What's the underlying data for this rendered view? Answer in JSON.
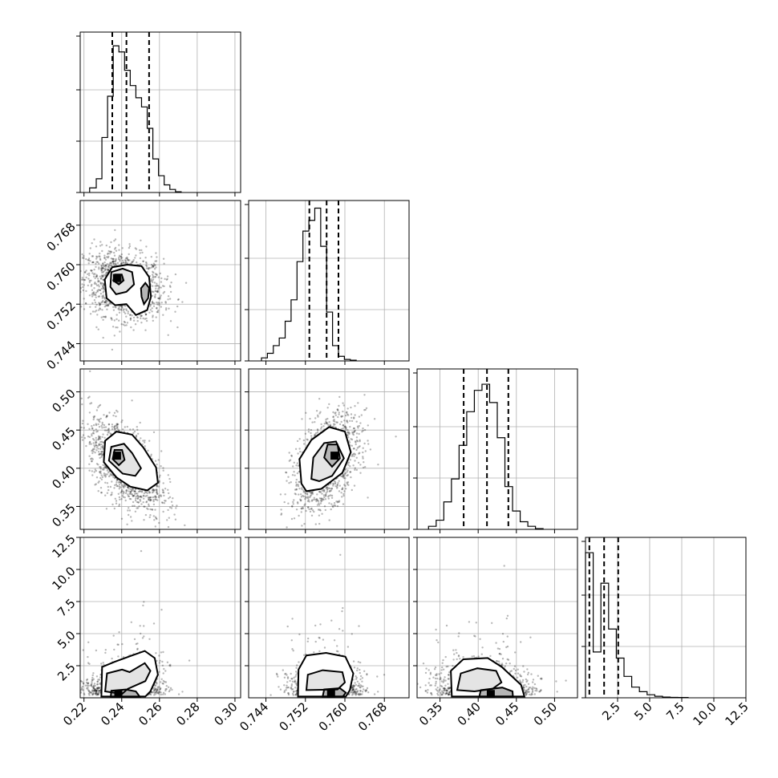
{
  "chart_data": {
    "type": "corner",
    "grid": true,
    "params": [
      {
        "range": [
          0.218,
          0.303
        ],
        "ticks": [
          0.22,
          0.24,
          0.26,
          0.28,
          0.3
        ],
        "tick_labels": [
          "0.22",
          "0.24",
          "0.26",
          "0.28",
          "0.30"
        ],
        "quantiles": [
          0.235,
          0.2425,
          0.2545
        ],
        "hist": {
          "edges": [
            0.223,
            0.2265,
            0.2295,
            0.2325,
            0.2355,
            0.2385,
            0.2415,
            0.2445,
            0.2475,
            0.2505,
            0.2535,
            0.2565,
            0.2595,
            0.2625,
            0.2655,
            0.2685,
            0.2715
          ],
          "counts": [
            0.03,
            0.09,
            0.36,
            0.63,
            0.96,
            0.92,
            0.8,
            0.7,
            0.62,
            0.56,
            0.42,
            0.22,
            0.11,
            0.05,
            0.02,
            0.005
          ]
        }
      },
      {
        "range": [
          0.7405,
          0.773
        ],
        "ticks": [
          0.744,
          0.752,
          0.76,
          0.768
        ],
        "tick_labels": [
          "0.744",
          "0.752",
          "0.760",
          "0.768"
        ],
        "quantiles": [
          0.7528,
          0.7563,
          0.7587
        ],
        "hist": {
          "edges": [
            0.7431,
            0.7443,
            0.7455,
            0.7467,
            0.7479,
            0.7491,
            0.7503,
            0.7515,
            0.7527,
            0.7539,
            0.7551,
            0.7563,
            0.7575,
            0.7587,
            0.7599,
            0.7611,
            0.7623
          ],
          "counts": [
            0.02,
            0.05,
            0.1,
            0.15,
            0.26,
            0.4,
            0.65,
            0.85,
            0.92,
            1.0,
            0.75,
            0.32,
            0.1,
            0.03,
            0.01,
            0.005
          ]
        }
      },
      {
        "range": [
          0.32,
          0.53
        ],
        "ticks": [
          0.35,
          0.4,
          0.45,
          0.5
        ],
        "tick_labels": [
          "0.35",
          "0.40",
          "0.45",
          "0.50"
        ],
        "quantiles": [
          0.381,
          0.4115,
          0.4395
        ],
        "hist": {
          "edges": [
            0.335,
            0.345,
            0.355,
            0.365,
            0.375,
            0.385,
            0.395,
            0.405,
            0.415,
            0.425,
            0.435,
            0.445,
            0.455,
            0.465,
            0.475,
            0.485
          ],
          "counts": [
            0.02,
            0.06,
            0.18,
            0.33,
            0.55,
            0.77,
            0.91,
            0.95,
            0.83,
            0.6,
            0.28,
            0.12,
            0.05,
            0.02,
            0.005
          ]
        }
      },
      {
        "range": [
          0.0,
          12.5
        ],
        "ticks": [
          2.5,
          5.0,
          7.5,
          10.0,
          12.5
        ],
        "tick_labels": [
          "2.5",
          "5.0",
          "7.5",
          "10.0",
          "12.5"
        ],
        "quantiles": [
          0.3,
          1.45,
          2.55
        ],
        "hist": {
          "edges": [
            0.0,
            0.6,
            1.2,
            1.8,
            2.4,
            3.0,
            3.6,
            4.2,
            4.8,
            5.4,
            6.0,
            6.6,
            7.2,
            8.0
          ],
          "counts": [
            0.95,
            0.3,
            0.75,
            0.45,
            0.26,
            0.14,
            0.07,
            0.04,
            0.02,
            0.01,
            0.005,
            0.003,
            0.002
          ]
        }
      }
    ],
    "pairs": [
      {
        "row": 1,
        "col": 0,
        "scatter_center": [
          0.241,
          0.7558
        ],
        "scatter_spread": [
          0.0105,
          0.0034
        ],
        "scatter_corr": -0.2,
        "peak": [
          0.2375,
          0.7573
        ],
        "contours": [
          [
            [
              0.232,
              0.7532
            ],
            [
              0.231,
              0.757
            ],
            [
              0.235,
              0.7595
            ],
            [
              0.243,
              0.76
            ],
            [
              0.2505,
              0.7597
            ],
            [
              0.2545,
              0.7575
            ],
            [
              0.2555,
              0.7535
            ],
            [
              0.2535,
              0.7508
            ],
            [
              0.2475,
              0.7498
            ],
            [
              0.2425,
              0.752
            ],
            [
              0.2365,
              0.7518
            ]
          ],
          [
            [
              0.234,
              0.7555
            ],
            [
              0.2345,
              0.7585
            ],
            [
              0.2405,
              0.7592
            ],
            [
              0.2455,
              0.7585
            ],
            [
              0.2465,
              0.756
            ],
            [
              0.2425,
              0.7545
            ],
            [
              0.237,
              0.754
            ]
          ],
          [
            [
              0.2505,
              0.7535
            ],
            [
              0.2502,
              0.7552
            ],
            [
              0.2525,
              0.7563
            ],
            [
              0.2545,
              0.7553
            ],
            [
              0.254,
              0.7532
            ],
            [
              0.2518,
              0.752
            ]
          ],
          [
            [
              0.2355,
              0.7568
            ],
            [
              0.2365,
              0.758
            ],
            [
              0.24,
              0.758
            ],
            [
              0.241,
              0.7568
            ],
            [
              0.2385,
              0.756
            ]
          ]
        ]
      },
      {
        "row": 2,
        "col": 0,
        "scatter_center": [
          0.242,
          0.405
        ],
        "scatter_spread": [
          0.0095,
          0.03
        ],
        "scatter_corr": -0.55,
        "peak": [
          0.2375,
          0.4165
        ],
        "contours": [
          [
            [
              0.2305,
              0.408
            ],
            [
              0.2312,
              0.436
            ],
            [
              0.2372,
              0.448
            ],
            [
              0.2455,
              0.444
            ],
            [
              0.2515,
              0.427
            ],
            [
              0.2582,
              0.401
            ],
            [
              0.2592,
              0.381
            ],
            [
              0.2535,
              0.371
            ],
            [
              0.2445,
              0.376
            ],
            [
              0.2372,
              0.388
            ]
          ],
          [
            [
              0.2332,
              0.41
            ],
            [
              0.2345,
              0.428
            ],
            [
              0.2412,
              0.432
            ],
            [
              0.2455,
              0.42
            ],
            [
              0.2502,
              0.4
            ],
            [
              0.2472,
              0.39
            ],
            [
              0.2405,
              0.393
            ]
          ],
          [
            [
              0.2352,
              0.412
            ],
            [
              0.2362,
              0.424
            ],
            [
              0.2402,
              0.424
            ],
            [
              0.2415,
              0.411
            ],
            [
              0.2385,
              0.404
            ]
          ]
        ]
      },
      {
        "row": 2,
        "col": 1,
        "scatter_center": [
          0.7562,
          0.408
        ],
        "scatter_spread": [
          0.0033,
          0.03
        ],
        "scatter_corr": 0.45,
        "peak": [
          0.7579,
          0.4165
        ],
        "contours": [
          [
            [
              0.7512,
              0.38
            ],
            [
              0.7508,
              0.412
            ],
            [
              0.7532,
              0.437
            ],
            [
              0.7568,
              0.454
            ],
            [
              0.76,
              0.448
            ],
            [
              0.7612,
              0.421
            ],
            [
              0.7595,
              0.394
            ],
            [
              0.7552,
              0.373
            ],
            [
              0.7522,
              0.37
            ]
          ],
          [
            [
              0.7532,
              0.386
            ],
            [
              0.7536,
              0.414
            ],
            [
              0.7558,
              0.433
            ],
            [
              0.7582,
              0.435
            ],
            [
              0.7598,
              0.413
            ],
            [
              0.7574,
              0.39
            ],
            [
              0.7548,
              0.383
            ]
          ],
          [
            [
              0.7558,
              0.414
            ],
            [
              0.7565,
              0.431
            ],
            [
              0.7585,
              0.431
            ],
            [
              0.759,
              0.413
            ],
            [
              0.7574,
              0.402
            ]
          ]
        ]
      },
      {
        "row": 3,
        "col": 0,
        "scatter_center": [
          0.242,
          1.7
        ],
        "scatter_spread": [
          0.0095,
          1.5
        ],
        "scatter_corr": 0.3,
        "peak": [
          0.2382,
          0.3
        ],
        "contours": [
          [
            [
              0.2292,
              0.1
            ],
            [
              0.2296,
              2.4
            ],
            [
              0.2362,
              2.8
            ],
            [
              0.2455,
              3.3
            ],
            [
              0.2522,
              3.65
            ],
            [
              0.2575,
              3.1
            ],
            [
              0.2592,
              1.8
            ],
            [
              0.2552,
              0.5
            ],
            [
              0.2525,
              0.1
            ]
          ],
          [
            [
              0.2312,
              0.5
            ],
            [
              0.2322,
              1.9
            ],
            [
              0.2402,
              2.2
            ],
            [
              0.2442,
              2.0
            ],
            [
              0.2522,
              2.7
            ],
            [
              0.2552,
              2.1
            ],
            [
              0.2525,
              1.3
            ],
            [
              0.2432,
              0.7
            ],
            [
              0.2402,
              0.3
            ]
          ],
          [
            [
              0.2342,
              0.05
            ],
            [
              0.2345,
              0.55
            ],
            [
              0.2422,
              0.65
            ],
            [
              0.2475,
              0.5
            ],
            [
              0.2495,
              0.1
            ]
          ]
        ]
      },
      {
        "row": 3,
        "col": 1,
        "scatter_center": [
          0.7562,
          1.7
        ],
        "scatter_spread": [
          0.0033,
          1.5
        ],
        "scatter_corr": 0.05,
        "peak": [
          0.7572,
          0.3
        ],
        "contours": [
          [
            [
              0.7505,
              0.1
            ],
            [
              0.7506,
              2.2
            ],
            [
              0.7522,
              3.3
            ],
            [
              0.7562,
              3.5
            ],
            [
              0.7601,
              3.2
            ],
            [
              0.7617,
              1.9
            ],
            [
              0.761,
              0.6
            ],
            [
              0.7602,
              0.1
            ]
          ],
          [
            [
              0.7522,
              0.6
            ],
            [
              0.7525,
              1.8
            ],
            [
              0.7555,
              2.15
            ],
            [
              0.7595,
              2.0
            ],
            [
              0.76,
              1.2
            ],
            [
              0.7585,
              0.65
            ]
          ],
          [
            [
              0.7555,
              0.1
            ],
            [
              0.7558,
              0.65
            ],
            [
              0.759,
              0.75
            ],
            [
              0.7602,
              0.4
            ],
            [
              0.7596,
              0.1
            ]
          ]
        ]
      },
      {
        "row": 3,
        "col": 2,
        "scatter_center": [
          0.408,
          1.7
        ],
        "scatter_spread": [
          0.03,
          1.5
        ],
        "scatter_corr": -0.1,
        "peak": [
          0.4165,
          0.3
        ],
        "contours": [
          [
            [
              0.3655,
              0.1
            ],
            [
              0.3642,
              2.1
            ],
            [
              0.3805,
              3.0
            ],
            [
              0.4125,
              3.1
            ],
            [
              0.431,
              2.4
            ],
            [
              0.4562,
              1.0
            ],
            [
              0.4605,
              0.1
            ]
          ],
          [
            [
              0.3725,
              0.6
            ],
            [
              0.3772,
              1.9
            ],
            [
              0.399,
              2.3
            ],
            [
              0.4235,
              2.1
            ],
            [
              0.4305,
              1.2
            ],
            [
              0.4188,
              0.7
            ],
            [
              0.3952,
              0.5
            ]
          ],
          [
            [
              0.4015,
              0.1
            ],
            [
              0.4035,
              0.6
            ],
            [
              0.4315,
              0.8
            ],
            [
              0.445,
              0.5
            ],
            [
              0.4455,
              0.1
            ]
          ]
        ]
      }
    ]
  }
}
